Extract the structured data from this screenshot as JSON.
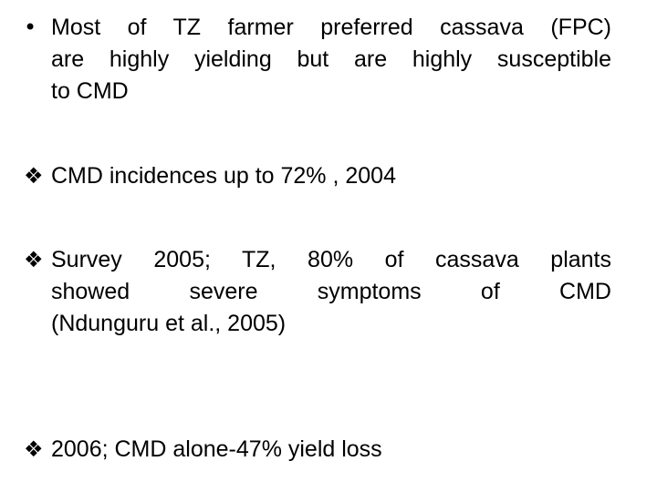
{
  "bullets": [
    {
      "marker": "•",
      "lines": [
        "Most of TZ farmer preferred cassava (FPC)",
        "are highly yielding but are highly susceptible",
        "to CMD"
      ]
    },
    {
      "marker": "❖",
      "lines": [
        "CMD incidences up to 72% , 2004"
      ]
    },
    {
      "marker": "❖",
      "lines": [
        "Survey 2005; TZ, 80% of cassava plants",
        "showed severe symptoms of CMD",
        "(Ndunguru et al., 2005)"
      ]
    },
    {
      "marker": "❖",
      "lines": [
        "2006; CMD alone-47% yield loss"
      ]
    }
  ]
}
